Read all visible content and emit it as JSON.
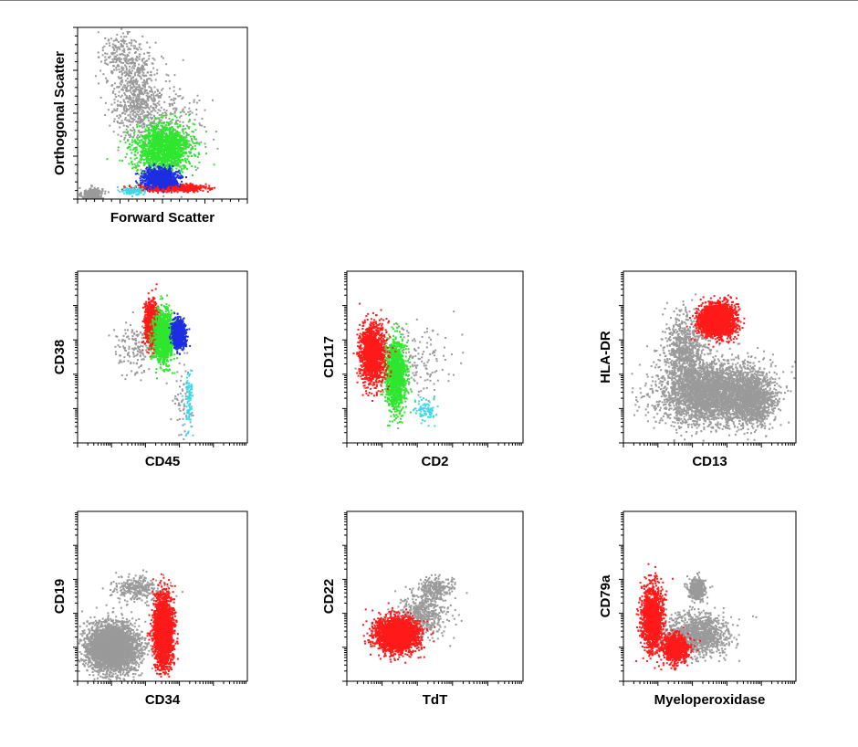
{
  "colors": {
    "ungated": "#9a9a9a",
    "red": "#ff1a1a",
    "green": "#2ee62e",
    "blue": "#1c2ee0",
    "cyan": "#3fd8e8",
    "frame": "#000000",
    "background": "#ffffff"
  },
  "chart_data": [
    {
      "type": "scatter",
      "xlabel": "Forward Scatter",
      "ylabel": "Orthogonal Scatter",
      "xscale": "linear",
      "yscale": "linear",
      "populations": [
        {
          "color": "ungated",
          "clusters": [
            [
              0.08,
              0.03,
              0.06,
              0.04,
              300
            ],
            [
              0.35,
              0.6,
              0.15,
              0.25,
              700
            ],
            [
              0.25,
              0.85,
              0.12,
              0.15,
              200
            ],
            [
              0.55,
              0.4,
              0.2,
              0.25,
              300
            ]
          ]
        },
        {
          "color": "green",
          "clusters": [
            [
              0.5,
              0.3,
              0.16,
              0.14,
              1500
            ]
          ]
        },
        {
          "color": "red",
          "clusters": [
            [
              0.55,
              0.07,
              0.2,
              0.02,
              600
            ]
          ]
        },
        {
          "color": "blue",
          "clusters": [
            [
              0.48,
              0.13,
              0.1,
              0.05,
              900
            ]
          ]
        },
        {
          "color": "cyan",
          "clusters": [
            [
              0.32,
              0.05,
              0.06,
              0.02,
              120
            ]
          ]
        }
      ]
    },
    {
      "type": "scatter",
      "xlabel": "CD45",
      "ylabel": "CD38",
      "xscale": "log",
      "yscale": "log",
      "populations": [
        {
          "color": "ungated",
          "clusters": [
            [
              0.33,
              0.55,
              0.12,
              0.15,
              150
            ],
            [
              0.62,
              0.25,
              0.06,
              0.25,
              60
            ]
          ]
        },
        {
          "color": "red",
          "clusters": [
            [
              0.43,
              0.7,
              0.04,
              0.13,
              900
            ]
          ]
        },
        {
          "color": "green",
          "clusters": [
            [
              0.5,
              0.62,
              0.06,
              0.15,
              1100
            ]
          ]
        },
        {
          "color": "blue",
          "clusters": [
            [
              0.59,
              0.64,
              0.04,
              0.08,
              700
            ]
          ]
        },
        {
          "color": "cyan",
          "clusters": [
            [
              0.65,
              0.25,
              0.025,
              0.18,
              90
            ]
          ]
        }
      ]
    },
    {
      "type": "scatter",
      "xlabel": "CD2",
      "ylabel": "CD117",
      "xscale": "log",
      "yscale": "log",
      "populations": [
        {
          "color": "ungated",
          "clusters": [
            [
              0.35,
              0.45,
              0.25,
              0.25,
              200
            ]
          ]
        },
        {
          "color": "green",
          "clusters": [
            [
              0.27,
              0.4,
              0.06,
              0.2,
              1300
            ]
          ]
        },
        {
          "color": "red",
          "clusters": [
            [
              0.14,
              0.52,
              0.07,
              0.17,
              1500
            ]
          ]
        },
        {
          "color": "cyan",
          "clusters": [
            [
              0.44,
              0.2,
              0.06,
              0.06,
              80
            ]
          ]
        }
      ]
    },
    {
      "type": "scatter",
      "xlabel": "CD13",
      "ylabel": "HLA-DR",
      "xscale": "log",
      "yscale": "log",
      "populations": [
        {
          "color": "ungated",
          "clusters": [
            [
              0.5,
              0.3,
              0.3,
              0.18,
              3500
            ],
            [
              0.35,
              0.55,
              0.12,
              0.2,
              700
            ],
            [
              0.75,
              0.25,
              0.12,
              0.15,
              1000
            ]
          ]
        },
        {
          "color": "red",
          "clusters": [
            [
              0.54,
              0.72,
              0.1,
              0.09,
              2500
            ]
          ]
        }
      ]
    },
    {
      "type": "scatter",
      "xlabel": "CD34",
      "ylabel": "CD19",
      "xscale": "log",
      "yscale": "log",
      "populations": [
        {
          "color": "ungated",
          "clusters": [
            [
              0.2,
              0.2,
              0.15,
              0.14,
              3500
            ],
            [
              0.35,
              0.55,
              0.15,
              0.08,
              300
            ]
          ]
        },
        {
          "color": "red",
          "clusters": [
            [
              0.5,
              0.3,
              0.055,
              0.2,
              2500
            ]
          ]
        }
      ]
    },
    {
      "type": "scatter",
      "xlabel": "TdT",
      "ylabel": "CD22",
      "xscale": "log",
      "yscale": "log",
      "populations": [
        {
          "color": "ungated",
          "clusters": [
            [
              0.42,
              0.4,
              0.14,
              0.12,
              500
            ],
            [
              0.5,
              0.55,
              0.1,
              0.07,
              250
            ]
          ]
        },
        {
          "color": "red",
          "clusters": [
            [
              0.28,
              0.28,
              0.12,
              0.1,
              2600
            ]
          ]
        }
      ]
    },
    {
      "type": "scatter",
      "xlabel": "Myeloperoxidase",
      "ylabel": "CD79a",
      "xscale": "log",
      "yscale": "log",
      "populations": [
        {
          "color": "ungated",
          "clusters": [
            [
              0.42,
              0.28,
              0.18,
              0.12,
              1200
            ],
            [
              0.42,
              0.55,
              0.05,
              0.06,
              400
            ]
          ]
        },
        {
          "color": "red",
          "clusters": [
            [
              0.16,
              0.38,
              0.06,
              0.18,
              1500
            ],
            [
              0.3,
              0.2,
              0.08,
              0.08,
              800
            ]
          ]
        }
      ]
    }
  ]
}
